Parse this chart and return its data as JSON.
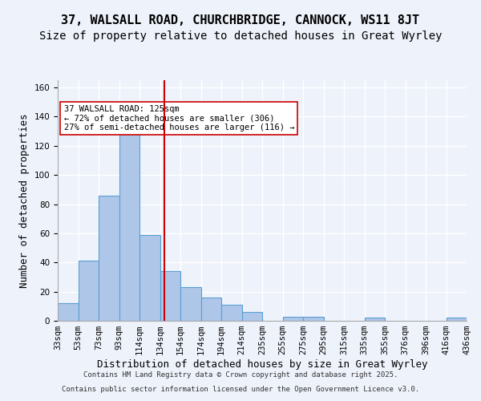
{
  "title1": "37, WALSALL ROAD, CHURCHBRIDGE, CANNOCK, WS11 8JT",
  "title2": "Size of property relative to detached houses in Great Wyrley",
  "xlabel": "Distribution of detached houses by size in Great Wyrley",
  "ylabel": "Number of detached properties",
  "bins": [
    "33sqm",
    "53sqm",
    "73sqm",
    "93sqm",
    "114sqm",
    "134sqm",
    "154sqm",
    "174sqm",
    "194sqm",
    "214sqm",
    "235sqm",
    "255sqm",
    "275sqm",
    "295sqm",
    "315sqm",
    "335sqm",
    "355sqm",
    "376sqm",
    "396sqm",
    "416sqm",
    "436sqm"
  ],
  "values": [
    12,
    41,
    86,
    131,
    59,
    34,
    23,
    16,
    11,
    6,
    0,
    3,
    3,
    0,
    0,
    2,
    0,
    0,
    0,
    2
  ],
  "bar_color": "#aec6e8",
  "bar_edge_color": "#5a9fd4",
  "vline_x": 4.72,
  "vline_color": "#cc0000",
  "annotation_text": "37 WALSALL ROAD: 125sqm\n← 72% of detached houses are smaller (306)\n27% of semi-detached houses are larger (116) →",
  "annotation_box_color": "#ffffff",
  "annotation_box_edge": "#cc0000",
  "ylim": [
    0,
    165
  ],
  "yticks": [
    0,
    20,
    40,
    60,
    80,
    100,
    120,
    140,
    160
  ],
  "footer1": "Contains HM Land Registry data © Crown copyright and database right 2025.",
  "footer2": "Contains public sector information licensed under the Open Government Licence v3.0.",
  "bg_color": "#eef2fb",
  "plot_bg_color": "#eef2fb",
  "grid_color": "#ffffff",
  "title1_fontsize": 11,
  "title2_fontsize": 10,
  "tick_fontsize": 7.5
}
